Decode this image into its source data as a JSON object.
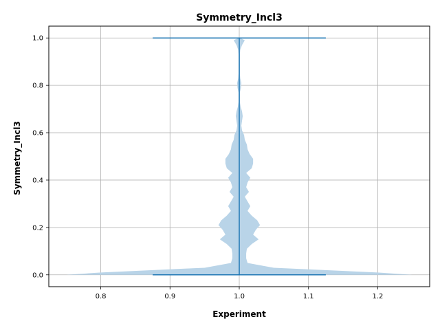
{
  "chart_data": {
    "type": "violin",
    "title": "Symmetry_Incl3",
    "xlabel": "Experiment",
    "ylabel": "Symmetry_Incl3",
    "xlim": [
      0.725,
      1.275
    ],
    "ylim": [
      -0.05,
      1.05
    ],
    "xticks": [
      0.8,
      0.9,
      1.0,
      1.1,
      1.2
    ],
    "xtick_labels": [
      "0.8",
      "0.9",
      "1.0",
      "1.1",
      "1.2"
    ],
    "yticks": [
      0.0,
      0.2,
      0.4,
      0.6,
      0.8,
      1.0
    ],
    "ytick_labels": [
      "0.0",
      "0.2",
      "0.4",
      "0.6",
      "0.8",
      "1.0"
    ],
    "grid": true,
    "colors": {
      "body": "#b9d4e8",
      "lines": "#1f77b4",
      "grid": "#b0b0b0"
    },
    "violin": {
      "position": 1.0,
      "min": 0.0,
      "max": 1.0,
      "cap_halfwidth": 0.125,
      "max_halfwidth": 0.25,
      "profile_y": [
        0.0,
        0.01,
        0.03,
        0.05,
        0.07,
        0.09,
        0.11,
        0.13,
        0.15,
        0.17,
        0.19,
        0.21,
        0.23,
        0.25,
        0.27,
        0.29,
        0.31,
        0.33,
        0.35,
        0.37,
        0.39,
        0.41,
        0.43,
        0.45,
        0.47,
        0.49,
        0.51,
        0.53,
        0.55,
        0.57,
        0.59,
        0.61,
        0.63,
        0.65,
        0.67,
        0.69,
        0.71,
        0.73,
        0.75,
        0.77,
        0.79,
        0.81,
        0.83,
        0.85,
        0.87,
        0.89,
        0.91,
        0.93,
        0.95,
        0.97,
        0.99,
        1.0
      ],
      "profile_halfwidth": [
        0.25,
        0.2,
        0.05,
        0.012,
        0.01,
        0.01,
        0.011,
        0.018,
        0.028,
        0.02,
        0.024,
        0.03,
        0.026,
        0.018,
        0.012,
        0.016,
        0.012,
        0.008,
        0.014,
        0.01,
        0.012,
        0.016,
        0.01,
        0.018,
        0.02,
        0.02,
        0.015,
        0.012,
        0.011,
        0.008,
        0.007,
        0.004,
        0.003,
        0.004,
        0.005,
        0.004,
        0.002,
        0.001,
        0.001,
        0.001,
        0.0025,
        0.003,
        0.0015,
        0.001,
        0.001,
        0.001,
        0.001,
        0.001,
        0.0015,
        0.004,
        0.008,
        0.001
      ]
    }
  }
}
